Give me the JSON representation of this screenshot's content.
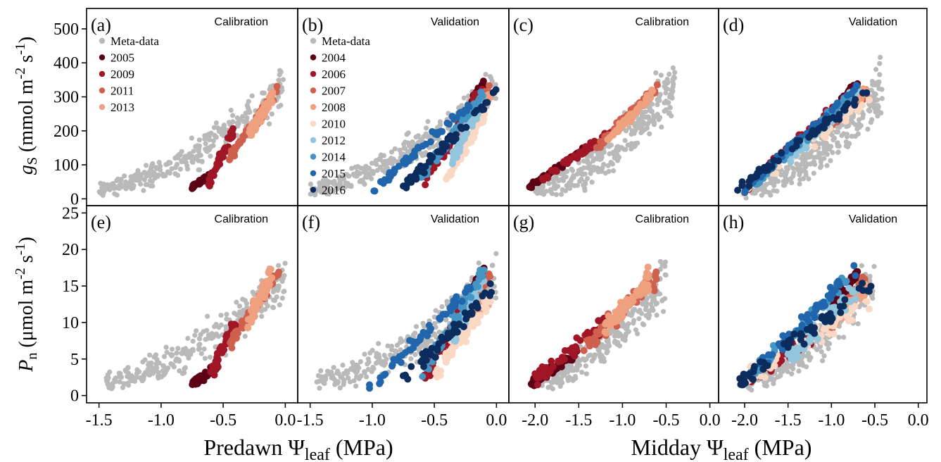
{
  "figure": {
    "y_labels": {
      "top": {
        "var": "g",
        "sub": "S",
        "rest": " (mmol m",
        "exp1": "-2",
        "mid": " s",
        "exp2": "-1",
        "end": ")"
      },
      "bottom": {
        "var": "P",
        "sub": "n",
        "rest": " (μmol m",
        "exp1": "-2",
        "mid": " s",
        "exp2": "-1",
        "end": ")"
      }
    },
    "x_labels": {
      "left": {
        "pre": "Predawn Ψ",
        "sub": "leaf",
        "post": " (MPa)"
      },
      "right": {
        "pre": "Midday Ψ",
        "sub": "leaf",
        "post": " (MPa)"
      }
    },
    "colors": {
      "Meta-data": "#b9b9b9",
      "2004": "#5c0016",
      "2005": "#5c0016",
      "2006": "#a11626",
      "2009": "#a11626",
      "2007": "#d0604e",
      "2011": "#d0604e",
      "2008": "#efa07f",
      "2013": "#efa07f",
      "2010": "#fbd8c4",
      "2012": "#92c5de",
      "2014": "#4494c4",
      "2015": "#2166ac",
      "2016": "#0b2c5c"
    },
    "legends": [
      {
        "panel": "a",
        "entries": [
          "Meta-data",
          "2005",
          "2009",
          "2011",
          "2013"
        ]
      },
      {
        "panel": "b",
        "entries": [
          "Meta-data",
          "2004",
          "2006",
          "2007",
          "2008",
          "2010",
          "2012",
          "2014",
          "2015",
          "2016"
        ]
      }
    ]
  },
  "chart_data": [
    {
      "id": "a",
      "label": "(a)",
      "title": "Calibration",
      "type": "scatter",
      "y_var": "gs",
      "xlim": [
        -1.6,
        0.1
      ],
      "ylim": [
        -20,
        560
      ],
      "xticks": [
        "-1.5",
        "-1.0",
        "-0.5",
        "0.0"
      ],
      "yticks": [
        "0",
        "100",
        "200",
        "300",
        "400",
        "500"
      ],
      "xtick_values": [
        -1.5,
        -1.0,
        -0.5,
        0.0
      ],
      "ytick_values": [
        0,
        100,
        200,
        300,
        400,
        500
      ],
      "meta": {
        "x": [
          -1.5,
          0.0
        ],
        "y_at": [
          30,
          330
        ],
        "spread": 70,
        "count": 300
      },
      "series": [
        {
          "year": "2005",
          "x": [
            -0.75,
            -0.6
          ],
          "y": [
            35,
            70
          ],
          "spread": 10
        },
        {
          "year": "2009",
          "x": [
            -0.62,
            -0.42
          ],
          "y": [
            40,
            200
          ],
          "spread": 25
        },
        {
          "year": "2011",
          "x": [
            -0.45,
            -0.05
          ],
          "y": [
            120,
            320
          ],
          "spread": 25
        },
        {
          "year": "2013",
          "x": [
            -0.3,
            -0.1
          ],
          "y": [
            180,
            300
          ],
          "spread": 30
        }
      ]
    },
    {
      "id": "b",
      "label": "(b)",
      "title": "Validation",
      "type": "scatter",
      "y_var": "gs",
      "xlim": [
        -1.6,
        0.1
      ],
      "ylim": [
        -20,
        560
      ],
      "xticks": [
        "-1.5",
        "-1.0",
        "-0.5",
        "0.0"
      ],
      "yticks": [
        "0",
        "100",
        "200",
        "300",
        "400",
        "500"
      ],
      "xtick_values": [
        -1.5,
        -1.0,
        -0.5,
        0.0
      ],
      "ytick_values": [
        0,
        100,
        200,
        300,
        400,
        500
      ],
      "meta": {
        "x": [
          -1.5,
          0.0
        ],
        "y_at": [
          30,
          330
        ],
        "spread": 70,
        "count": 300
      },
      "series": [
        {
          "year": "2004",
          "x": [
            -0.2,
            -0.1
          ],
          "y": [
            280,
            340
          ],
          "spread": 20
        },
        {
          "year": "2006",
          "x": [
            -0.6,
            -0.1
          ],
          "y": [
            40,
            330
          ],
          "spread": 25
        },
        {
          "year": "2007",
          "x": [
            -0.3,
            -0.05
          ],
          "y": [
            200,
            320
          ],
          "spread": 20
        },
        {
          "year": "2008",
          "x": [
            -0.2,
            -0.05
          ],
          "y": [
            250,
            300
          ],
          "spread": 20
        },
        {
          "year": "2010",
          "x": [
            -0.4,
            -0.1
          ],
          "y": [
            60,
            250
          ],
          "spread": 30
        },
        {
          "year": "2012",
          "x": [
            -0.35,
            -0.1
          ],
          "y": [
            120,
            300
          ],
          "spread": 30
        },
        {
          "year": "2014",
          "x": [
            -0.6,
            -0.1
          ],
          "y": [
            60,
            320
          ],
          "spread": 25
        },
        {
          "year": "2015",
          "x": [
            -1.02,
            -0.2
          ],
          "y": [
            18,
            280
          ],
          "spread": 15
        },
        {
          "year": "2016",
          "x": [
            -0.75,
            0.0
          ],
          "y": [
            30,
            320
          ],
          "spread": 25
        }
      ]
    },
    {
      "id": "c",
      "label": "(c)",
      "title": "Calibration",
      "type": "scatter",
      "y_var": "gs",
      "xlim": [
        -2.3,
        0.1
      ],
      "ylim": [
        -20,
        560
      ],
      "xticks": [
        "-2.0",
        "-1.5",
        "-1.0",
        "-0.5",
        "0.0"
      ],
      "yticks": [
        "0",
        "100",
        "200",
        "300",
        "400",
        "500"
      ],
      "xtick_values": [
        -2.0,
        -1.5,
        -1.0,
        -0.5,
        0.0
      ],
      "ytick_values": [
        0,
        100,
        200,
        300,
        400,
        500
      ],
      "meta": {
        "x": [
          -2.0,
          -0.4
        ],
        "y_at": [
          30,
          330
        ],
        "spread": 90,
        "count": 300
      },
      "series": [
        {
          "year": "2005",
          "x": [
            -2.1,
            -1.4
          ],
          "y": [
            30,
            150
          ],
          "spread": 12
        },
        {
          "year": "2009",
          "x": [
            -1.9,
            -1.1
          ],
          "y": [
            60,
            200
          ],
          "spread": 15
        },
        {
          "year": "2011",
          "x": [
            -1.3,
            -0.6
          ],
          "y": [
            150,
            330
          ],
          "spread": 20
        },
        {
          "year": "2013",
          "x": [
            -1.2,
            -0.65
          ],
          "y": [
            170,
            310
          ],
          "spread": 20
        }
      ]
    },
    {
      "id": "d",
      "label": "(d)",
      "title": "Validation",
      "type": "scatter",
      "y_var": "gs",
      "xlim": [
        -2.3,
        0.1
      ],
      "ylim": [
        -20,
        560
      ],
      "xticks": [
        "-2.0",
        "-1.5",
        "-1.0",
        "-0.5",
        "0.0"
      ],
      "yticks": [
        "0",
        "100",
        "200",
        "300",
        "400",
        "500"
      ],
      "xtick_values": [
        -2.0,
        -1.5,
        -1.0,
        -0.5,
        0.0
      ],
      "ytick_values": [
        0,
        100,
        200,
        300,
        400,
        500
      ],
      "meta": {
        "x": [
          -2.0,
          -0.4
        ],
        "y_at": [
          30,
          330
        ],
        "spread": 90,
        "count": 300
      },
      "series": [
        {
          "year": "2004",
          "x": [
            -1.0,
            -0.7
          ],
          "y": [
            250,
            340
          ],
          "spread": 20
        },
        {
          "year": "2006",
          "x": [
            -2.0,
            -1.0
          ],
          "y": [
            30,
            260
          ],
          "spread": 20
        },
        {
          "year": "2007",
          "x": [
            -1.0,
            -0.6
          ],
          "y": [
            220,
            320
          ],
          "spread": 20
        },
        {
          "year": "2008",
          "x": [
            -1.0,
            -0.6
          ],
          "y": [
            240,
            320
          ],
          "spread": 20
        },
        {
          "year": "2010",
          "x": [
            -2.0,
            -0.55
          ],
          "y": [
            30,
            290
          ],
          "spread": 30
        },
        {
          "year": "2012",
          "x": [
            -1.5,
            -0.7
          ],
          "y": [
            110,
            320
          ],
          "spread": 25
        },
        {
          "year": "2014",
          "x": [
            -1.9,
            -0.8
          ],
          "y": [
            40,
            300
          ],
          "spread": 20
        },
        {
          "year": "2015",
          "x": [
            -2.05,
            -0.7
          ],
          "y": [
            20,
            330
          ],
          "spread": 15
        },
        {
          "year": "2016",
          "x": [
            -2.1,
            -0.55
          ],
          "y": [
            25,
            320
          ],
          "spread": 18
        }
      ]
    },
    {
      "id": "e",
      "label": "(e)",
      "title": "Calibration",
      "type": "scatter",
      "y_var": "Pn",
      "xlim": [
        -1.6,
        0.1
      ],
      "ylim": [
        -1,
        26
      ],
      "xticks": [
        "-1.5",
        "-1.0",
        "-0.5",
        "0.0"
      ],
      "yticks": [
        "0",
        "5",
        "10",
        "15",
        "20",
        "25"
      ],
      "xtick_values": [
        -1.5,
        -1.0,
        -0.5,
        0.0
      ],
      "ytick_values": [
        0,
        5,
        10,
        15,
        20,
        25
      ],
      "meta": {
        "x": [
          -1.45,
          0.0
        ],
        "y_at": [
          2,
          16
        ],
        "spread": 4,
        "count": 260
      },
      "series": [
        {
          "year": "2005",
          "x": [
            -0.75,
            -0.55
          ],
          "y": [
            1.5,
            4
          ],
          "spread": 0.8
        },
        {
          "year": "2009",
          "x": [
            -0.6,
            -0.4
          ],
          "y": [
            3,
            10
          ],
          "spread": 1.5
        },
        {
          "year": "2011",
          "x": [
            -0.45,
            -0.05
          ],
          "y": [
            7,
            17
          ],
          "spread": 1.5
        },
        {
          "year": "2013",
          "x": [
            -0.3,
            -0.1
          ],
          "y": [
            10,
            17
          ],
          "spread": 2
        }
      ]
    },
    {
      "id": "f",
      "label": "(f)",
      "title": "Validation",
      "type": "scatter",
      "y_var": "Pn",
      "xlim": [
        -1.6,
        0.1
      ],
      "ylim": [
        -1,
        26
      ],
      "xticks": [
        "-1.5",
        "-1.0",
        "-0.5",
        "0.0"
      ],
      "yticks": [
        "0",
        "5",
        "10",
        "15",
        "20",
        "25"
      ],
      "xtick_values": [
        -1.5,
        -1.0,
        -0.5,
        0.0
      ],
      "ytick_values": [
        0,
        5,
        10,
        15,
        20,
        25
      ],
      "meta": {
        "x": [
          -1.45,
          0.0
        ],
        "y_at": [
          2,
          16
        ],
        "spread": 4,
        "count": 260
      },
      "series": [
        {
          "year": "2004",
          "x": [
            -0.2,
            -0.1
          ],
          "y": [
            14,
            17
          ],
          "spread": 1.5
        },
        {
          "year": "2006",
          "x": [
            -0.6,
            -0.1
          ],
          "y": [
            2,
            16
          ],
          "spread": 1.5
        },
        {
          "year": "2007",
          "x": [
            -0.3,
            -0.05
          ],
          "y": [
            9,
            17
          ],
          "spread": 1.5
        },
        {
          "year": "2008",
          "x": [
            -0.3,
            -0.05
          ],
          "y": [
            8,
            14
          ],
          "spread": 1.5
        },
        {
          "year": "2010",
          "x": [
            -0.5,
            -0.05
          ],
          "y": [
            3,
            13
          ],
          "spread": 2
        },
        {
          "year": "2012",
          "x": [
            -0.35,
            -0.1
          ],
          "y": [
            8,
            16
          ],
          "spread": 2
        },
        {
          "year": "2014",
          "x": [
            -0.6,
            -0.1
          ],
          "y": [
            3,
            17
          ],
          "spread": 1.5
        },
        {
          "year": "2015",
          "x": [
            -1.02,
            -0.2
          ],
          "y": [
            1,
            15
          ],
          "spread": 1
        },
        {
          "year": "2016",
          "x": [
            -0.75,
            0.0
          ],
          "y": [
            2,
            15
          ],
          "spread": 1.5
        }
      ]
    },
    {
      "id": "g",
      "label": "(g)",
      "title": "Calibration",
      "type": "scatter",
      "y_var": "Pn",
      "xlim": [
        -2.3,
        0.1
      ],
      "ylim": [
        -1,
        26
      ],
      "xticks": [
        "-2.0",
        "-1.5",
        "-1.0",
        "-0.5",
        "0.0"
      ],
      "yticks": [
        "0",
        "5",
        "10",
        "15",
        "20",
        "25"
      ],
      "xtick_values": [
        -2.0,
        -1.5,
        -1.0,
        -0.5,
        0.0
      ],
      "ytick_values": [
        0,
        5,
        10,
        15,
        20,
        25
      ],
      "meta": {
        "x": [
          -2.0,
          -0.5
        ],
        "y_at": [
          2,
          16
        ],
        "spread": 4,
        "count": 260
      },
      "series": [
        {
          "year": "2005",
          "x": [
            -2.05,
            -1.5
          ],
          "y": [
            1.5,
            6
          ],
          "spread": 1
        },
        {
          "year": "2009",
          "x": [
            -2.0,
            -1.2
          ],
          "y": [
            2,
            10
          ],
          "spread": 1.5
        },
        {
          "year": "2011",
          "x": [
            -1.5,
            -0.6
          ],
          "y": [
            6,
            16
          ],
          "spread": 2
        },
        {
          "year": "2013",
          "x": [
            -1.2,
            -0.7
          ],
          "y": [
            9,
            16
          ],
          "spread": 2
        }
      ]
    },
    {
      "id": "h",
      "label": "(h)",
      "title": "Validation",
      "type": "scatter",
      "y_var": "Pn",
      "xlim": [
        -2.3,
        0.1
      ],
      "ylim": [
        -1,
        26
      ],
      "xticks": [
        "-2.0",
        "-1.5",
        "-1.0",
        "-0.5",
        "0.0"
      ],
      "yticks": [
        "0",
        "5",
        "10",
        "15",
        "20",
        "25"
      ],
      "xtick_values": [
        -2.0,
        -1.5,
        -1.0,
        -0.5,
        0.0
      ],
      "ytick_values": [
        0,
        5,
        10,
        15,
        20,
        25
      ],
      "meta": {
        "x": [
          -2.0,
          -0.5
        ],
        "y_at": [
          2,
          16
        ],
        "spread": 4,
        "count": 260
      },
      "series": [
        {
          "year": "2004",
          "x": [
            -1.0,
            -0.7
          ],
          "y": [
            12,
            17
          ],
          "spread": 1.5
        },
        {
          "year": "2006",
          "x": [
            -2.0,
            -1.2
          ],
          "y": [
            2,
            8
          ],
          "spread": 1.5
        },
        {
          "year": "2007",
          "x": [
            -1.0,
            -0.6
          ],
          "y": [
            10,
            16
          ],
          "spread": 1.5
        },
        {
          "year": "2008",
          "x": [
            -1.0,
            -0.6
          ],
          "y": [
            10,
            15
          ],
          "spread": 1.5
        },
        {
          "year": "2010",
          "x": [
            -2.0,
            -0.55
          ],
          "y": [
            2,
            13
          ],
          "spread": 2
        },
        {
          "year": "2012",
          "x": [
            -1.5,
            -0.7
          ],
          "y": [
            5,
            15
          ],
          "spread": 2
        },
        {
          "year": "2014",
          "x": [
            -1.9,
            -0.8
          ],
          "y": [
            3,
            16
          ],
          "spread": 1.5
        },
        {
          "year": "2015",
          "x": [
            -2.05,
            -0.7
          ],
          "y": [
            1.5,
            17
          ],
          "spread": 1.5
        },
        {
          "year": "2016",
          "x": [
            -2.1,
            -0.55
          ],
          "y": [
            1.5,
            15
          ],
          "spread": 1.5
        }
      ]
    }
  ]
}
